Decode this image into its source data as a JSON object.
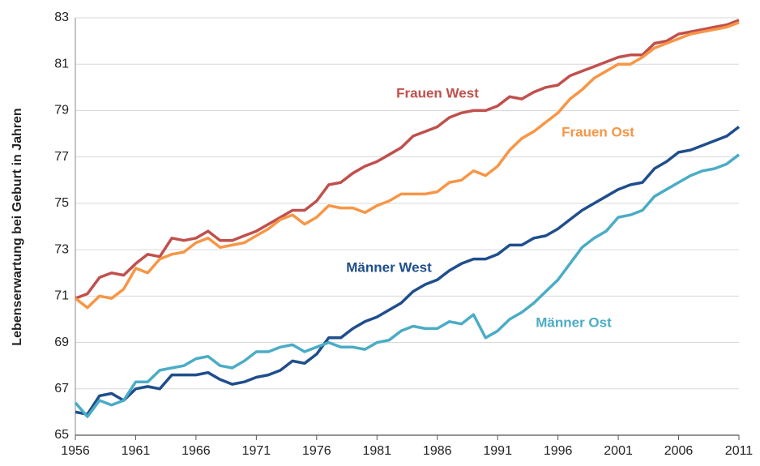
{
  "chart_data": {
    "type": "line",
    "y_label": "Lebenserwartung bei Geburt in Jahren",
    "x": [
      1956,
      1957,
      1958,
      1959,
      1960,
      1961,
      1962,
      1963,
      1964,
      1965,
      1966,
      1967,
      1968,
      1969,
      1970,
      1971,
      1972,
      1973,
      1974,
      1975,
      1976,
      1977,
      1978,
      1979,
      1980,
      1981,
      1982,
      1983,
      1984,
      1985,
      1986,
      1987,
      1988,
      1989,
      1990,
      1991,
      1992,
      1993,
      1994,
      1995,
      1996,
      1997,
      1998,
      1999,
      2000,
      2001,
      2002,
      2003,
      2004,
      2005,
      2006,
      2007,
      2008,
      2009,
      2010,
      2011
    ],
    "series": [
      {
        "name": "Frauen West",
        "color": "#c0504d",
        "values": [
          70.9,
          71.1,
          71.8,
          72.0,
          71.9,
          72.4,
          72.8,
          72.7,
          73.5,
          73.4,
          73.5,
          73.8,
          73.4,
          73.4,
          73.6,
          73.8,
          74.1,
          74.4,
          74.7,
          74.7,
          75.1,
          75.8,
          75.9,
          76.3,
          76.6,
          76.8,
          77.1,
          77.4,
          77.9,
          78.1,
          78.3,
          78.7,
          78.9,
          79.0,
          79.0,
          79.2,
          79.6,
          79.5,
          79.8,
          80.0,
          80.1,
          80.5,
          80.7,
          80.9,
          81.1,
          81.3,
          81.4,
          81.4,
          81.9,
          82.0,
          82.3,
          82.4,
          82.5,
          82.6,
          82.7,
          82.9
        ]
      },
      {
        "name": "Frauen Ost",
        "color": "#f79646",
        "values": [
          70.9,
          70.5,
          71.0,
          70.9,
          71.3,
          72.2,
          72.0,
          72.6,
          72.8,
          72.9,
          73.3,
          73.5,
          73.1,
          73.2,
          73.3,
          73.6,
          73.9,
          74.3,
          74.5,
          74.1,
          74.4,
          74.9,
          74.8,
          74.8,
          74.6,
          74.9,
          75.1,
          75.4,
          75.4,
          75.4,
          75.5,
          75.9,
          76.0,
          76.4,
          76.2,
          76.6,
          77.3,
          77.8,
          78.1,
          78.5,
          78.9,
          79.5,
          79.9,
          80.4,
          80.7,
          81.0,
          81.0,
          81.3,
          81.7,
          81.9,
          82.1,
          82.3,
          82.4,
          82.5,
          82.6,
          82.8
        ]
      },
      {
        "name": "Männer West",
        "color": "#1f4e8c",
        "values": [
          66.0,
          65.9,
          66.7,
          66.8,
          66.5,
          67.0,
          67.1,
          67.0,
          67.6,
          67.6,
          67.6,
          67.7,
          67.4,
          67.2,
          67.3,
          67.5,
          67.6,
          67.8,
          68.2,
          68.1,
          68.5,
          69.2,
          69.2,
          69.6,
          69.9,
          70.1,
          70.4,
          70.7,
          71.2,
          71.5,
          71.7,
          72.1,
          72.4,
          72.6,
          72.6,
          72.8,
          73.2,
          73.2,
          73.5,
          73.6,
          73.9,
          74.3,
          74.7,
          75.0,
          75.3,
          75.6,
          75.8,
          75.9,
          76.5,
          76.8,
          77.2,
          77.3,
          77.5,
          77.7,
          77.9,
          78.3
        ]
      },
      {
        "name": "Männer Ost",
        "color": "#4bacc6",
        "values": [
          66.4,
          65.8,
          66.5,
          66.3,
          66.5,
          67.3,
          67.3,
          67.8,
          67.9,
          68.0,
          68.3,
          68.4,
          68.0,
          67.9,
          68.2,
          68.6,
          68.6,
          68.8,
          68.9,
          68.6,
          68.8,
          69.0,
          68.8,
          68.8,
          68.7,
          69.0,
          69.1,
          69.5,
          69.7,
          69.6,
          69.6,
          69.9,
          69.8,
          70.2,
          69.2,
          69.5,
          70.0,
          70.3,
          70.7,
          71.2,
          71.7,
          72.4,
          73.1,
          73.5,
          73.8,
          74.4,
          74.5,
          74.7,
          75.3,
          75.6,
          75.9,
          76.2,
          76.4,
          76.5,
          76.7,
          77.1
        ]
      }
    ],
    "xlim": [
      1956,
      2011
    ],
    "ylim": [
      65,
      83
    ],
    "xticks": [
      1956,
      1961,
      1966,
      1971,
      1976,
      1981,
      1986,
      1991,
      1996,
      2001,
      2006,
      2011
    ],
    "yticks": [
      65,
      67,
      69,
      71,
      73,
      75,
      77,
      79,
      81,
      83
    ],
    "grid": true
  }
}
